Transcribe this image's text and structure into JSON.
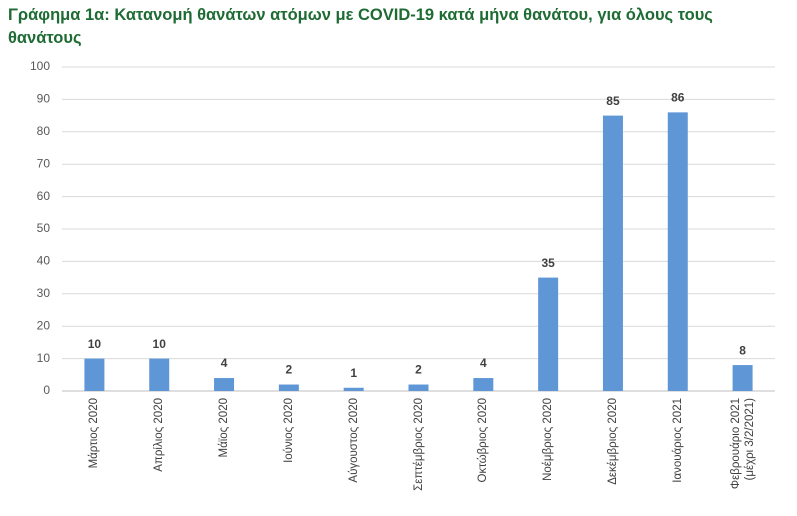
{
  "chart_data": {
    "type": "bar",
    "title": "Γράφημα 1α: Κατανομή θανάτων ατόμων με COVID-19 κατά μήνα θανάτου, για όλους τους θανάτους",
    "categories": [
      "Μάρτιος 2020",
      "Απρίλιος 2020",
      "Μάϊος 2020",
      "Ιούνιος 2020",
      "Αύγουστος 2020",
      "Σεπτέμβριος 2020",
      "Οκτώβριος 2020",
      "Νοέμβριος 2020",
      "Δεκέμβριος 2020",
      "Ιανουάριος 2021",
      "Φεβρουάριο 2021 (μέχρι 3/2/2021)"
    ],
    "values": [
      10,
      10,
      4,
      2,
      1,
      2,
      4,
      35,
      85,
      86,
      8
    ],
    "color": "#5f97d6",
    "ylim": [
      0,
      100
    ],
    "yticks": [
      0,
      10,
      20,
      30,
      40,
      50,
      60,
      70,
      80,
      90,
      100
    ],
    "grid": true
  }
}
